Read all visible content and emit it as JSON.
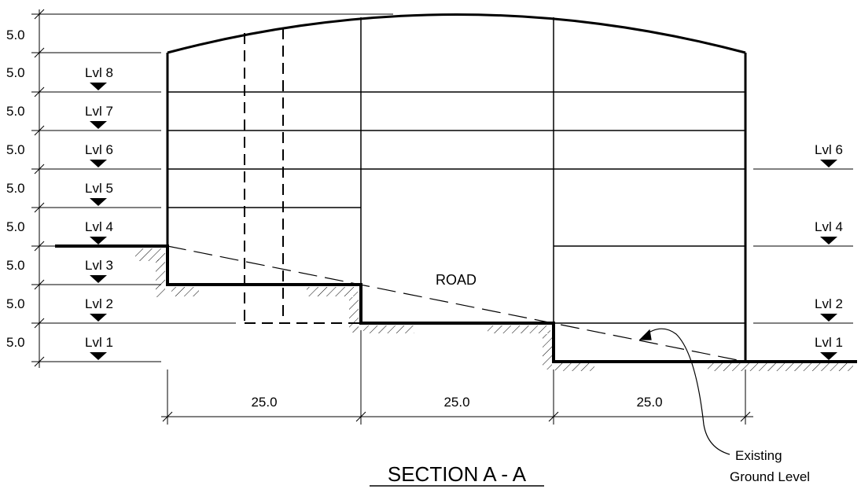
{
  "section_title": "SECTION A - A",
  "road_label": "ROAD",
  "callout": {
    "line1": "Existing",
    "line2": "Ground Level"
  },
  "vertical_dims": [
    "5.0",
    "5.0",
    "5.0",
    "5.0",
    "5.0",
    "5.0",
    "5.0",
    "5.0",
    "5.0"
  ],
  "horizontal_dims": [
    "25.0",
    "25.0",
    "25.0"
  ],
  "left_levels": [
    "Lvl 8",
    "Lvl 7",
    "Lvl 6",
    "Lvl 5",
    "Lvl 4",
    "Lvl 3",
    "Lvl 2",
    "Lvl 1"
  ],
  "right_levels": [
    "Lvl 6",
    "Lvl 4",
    "Lvl 2",
    "Lvl 1"
  ]
}
